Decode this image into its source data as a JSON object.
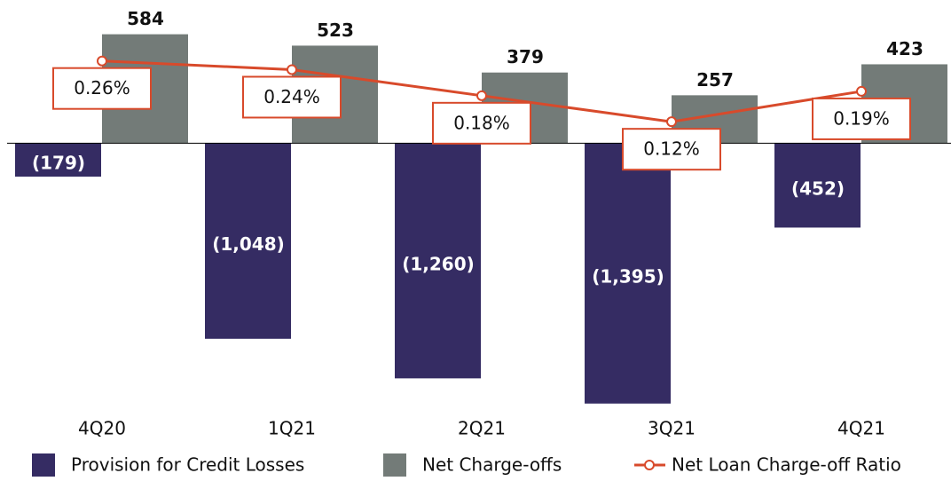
{
  "chart_data": {
    "type": "bar",
    "categories": [
      "4Q20",
      "1Q21",
      "2Q21",
      "3Q21",
      "4Q21"
    ],
    "series": [
      {
        "name": "Provision for Credit Losses",
        "color": "#352c63",
        "values": [
          -179,
          -1048,
          -1260,
          -1395,
          -452
        ],
        "value_labels": [
          "(179)",
          "(1,048)",
          "(1,260)",
          "(1,395)",
          "(452)"
        ]
      },
      {
        "name": "Net Charge-offs",
        "color": "#737b78",
        "values": [
          584,
          523,
          379,
          257,
          423
        ]
      },
      {
        "name": "Net Loan Charge-off Ratio",
        "type": "line",
        "axis": "y2",
        "color": "#d84a2b",
        "values": [
          0.26,
          0.24,
          0.18,
          0.12,
          0.19
        ],
        "value_labels": [
          "0.26%",
          "0.24%",
          "0.18%",
          "0.12%",
          "0.19%"
        ]
      }
    ],
    "ylim": [
      -1420,
      720
    ],
    "y2lim": [
      -0.54,
      0.38
    ]
  }
}
